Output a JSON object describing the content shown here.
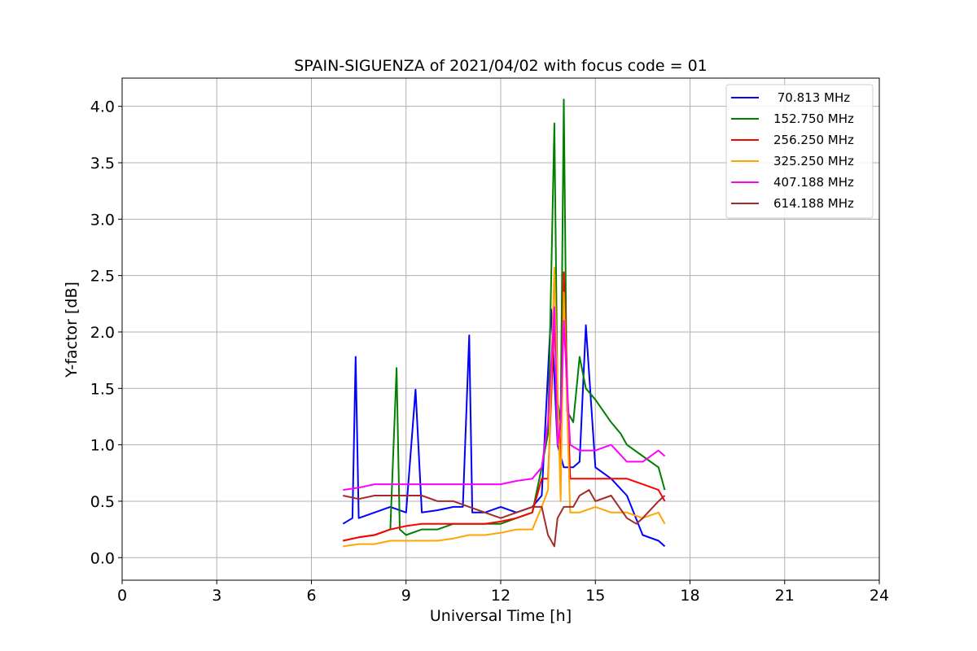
{
  "chart_data": {
    "type": "line",
    "title": "SPAIN-SIGUENZA of 2021/04/02 with focus code = 01",
    "xlabel": "Universal Time [h]",
    "ylabel": "Y-factor [dB]",
    "xlim": [
      0,
      24
    ],
    "ylim": [
      -0.2,
      4.25
    ],
    "xticks": [
      0,
      3,
      6,
      9,
      12,
      15,
      18,
      21,
      24
    ],
    "xtick_labels": [
      "0",
      "3",
      "6",
      "9",
      "12",
      "15",
      "18",
      "21",
      "24"
    ],
    "yticks": [
      0.0,
      0.5,
      1.0,
      1.5,
      2.0,
      2.5,
      3.0,
      3.5,
      4.0
    ],
    "ytick_labels": [
      "0.0",
      "0.5",
      "1.0",
      "1.5",
      "2.0",
      "2.5",
      "3.0",
      "3.5",
      "4.0"
    ],
    "grid": true,
    "legend_position": "top-right",
    "series": [
      {
        "name": " 70.813 MHz",
        "color": "#0000ff",
        "x": [
          7.0,
          7.3,
          7.4,
          7.5,
          8.0,
          8.5,
          9.0,
          9.3,
          9.5,
          10.0,
          10.5,
          10.8,
          11.0,
          11.1,
          11.5,
          12.0,
          12.5,
          13.0,
          13.3,
          13.6,
          13.8,
          14.0,
          14.3,
          14.5,
          14.7,
          15.0,
          15.5,
          16.0,
          16.5,
          17.0,
          17.2
        ],
        "y": [
          0.3,
          0.35,
          1.78,
          0.35,
          0.4,
          0.45,
          0.4,
          1.49,
          0.4,
          0.42,
          0.45,
          0.45,
          1.97,
          0.4,
          0.4,
          0.45,
          0.4,
          0.45,
          0.55,
          2.2,
          1.0,
          0.8,
          0.8,
          0.85,
          2.06,
          0.8,
          0.7,
          0.55,
          0.2,
          0.15,
          0.1
        ]
      },
      {
        "name": "152.750 MHz",
        "color": "#008000",
        "x": [
          7.0,
          7.5,
          8.0,
          8.5,
          8.7,
          8.8,
          9.0,
          9.5,
          10.0,
          10.5,
          11.0,
          11.5,
          12.0,
          12.5,
          13.0,
          13.3,
          13.5,
          13.7,
          13.8,
          13.9,
          14.0,
          14.1,
          14.3,
          14.5,
          14.7,
          15.0,
          15.5,
          15.8,
          16.0,
          16.5,
          17.0,
          17.2
        ],
        "y": [
          0.15,
          0.18,
          0.2,
          0.25,
          1.68,
          0.25,
          0.2,
          0.25,
          0.25,
          0.3,
          0.3,
          0.3,
          0.3,
          0.35,
          0.4,
          0.8,
          1.1,
          3.85,
          1.4,
          1.2,
          4.06,
          1.3,
          1.2,
          1.78,
          1.5,
          1.4,
          1.2,
          1.1,
          1.0,
          0.9,
          0.8,
          0.6
        ]
      },
      {
        "name": "256.250 MHz",
        "color": "#ff0000",
        "x": [
          7.0,
          7.5,
          8.0,
          8.5,
          9.0,
          9.5,
          10.0,
          10.5,
          11.0,
          11.5,
          12.0,
          12.5,
          13.0,
          13.3,
          13.5,
          13.7,
          13.9,
          14.0,
          14.2,
          14.5,
          15.0,
          15.5,
          16.0,
          16.5,
          17.0,
          17.2
        ],
        "y": [
          0.15,
          0.18,
          0.2,
          0.25,
          0.28,
          0.3,
          0.3,
          0.3,
          0.3,
          0.3,
          0.32,
          0.35,
          0.4,
          0.7,
          0.7,
          2.1,
          0.8,
          2.53,
          0.7,
          0.7,
          0.7,
          0.7,
          0.7,
          0.65,
          0.6,
          0.5
        ]
      },
      {
        "name": "325.250 MHz",
        "color": "#ffa500",
        "x": [
          7.0,
          7.5,
          8.0,
          8.5,
          9.0,
          9.5,
          10.0,
          10.5,
          11.0,
          11.5,
          12.0,
          12.5,
          13.0,
          13.3,
          13.5,
          13.7,
          13.9,
          14.0,
          14.2,
          14.5,
          15.0,
          15.5,
          16.0,
          16.5,
          17.0,
          17.2
        ],
        "y": [
          0.1,
          0.12,
          0.12,
          0.15,
          0.15,
          0.15,
          0.15,
          0.17,
          0.2,
          0.2,
          0.22,
          0.25,
          0.25,
          0.45,
          0.6,
          2.57,
          0.5,
          2.35,
          0.4,
          0.4,
          0.45,
          0.4,
          0.4,
          0.35,
          0.4,
          0.3
        ]
      },
      {
        "name": "407.188 MHz",
        "color": "#ff00ff",
        "x": [
          7.0,
          7.5,
          8.0,
          8.5,
          9.0,
          9.5,
          10.0,
          10.5,
          11.0,
          11.5,
          12.0,
          12.5,
          13.0,
          13.3,
          13.5,
          13.7,
          13.8,
          13.9,
          14.0,
          14.2,
          14.5,
          15.0,
          15.5,
          16.0,
          16.5,
          17.0,
          17.2
        ],
        "y": [
          0.6,
          0.62,
          0.65,
          0.65,
          0.65,
          0.65,
          0.65,
          0.65,
          0.65,
          0.65,
          0.65,
          0.68,
          0.7,
          0.8,
          1.2,
          2.22,
          1.0,
          1.2,
          2.1,
          1.0,
          0.95,
          0.95,
          1.0,
          0.85,
          0.85,
          0.95,
          0.9
        ]
      },
      {
        "name": "614.188 MHz",
        "color": "#a52a2a",
        "x": [
          7.0,
          7.5,
          8.0,
          8.5,
          9.0,
          9.5,
          10.0,
          10.5,
          11.0,
          11.5,
          12.0,
          12.5,
          13.0,
          13.3,
          13.5,
          13.7,
          13.8,
          14.0,
          14.3,
          14.5,
          14.8,
          15.0,
          15.5,
          16.0,
          16.3,
          16.5,
          17.0,
          17.2
        ],
        "y": [
          0.55,
          0.52,
          0.55,
          0.55,
          0.55,
          0.55,
          0.5,
          0.5,
          0.45,
          0.4,
          0.35,
          0.4,
          0.45,
          0.45,
          0.2,
          0.1,
          0.35,
          0.45,
          0.45,
          0.55,
          0.6,
          0.5,
          0.55,
          0.35,
          0.3,
          0.35,
          0.5,
          0.55
        ]
      }
    ]
  }
}
